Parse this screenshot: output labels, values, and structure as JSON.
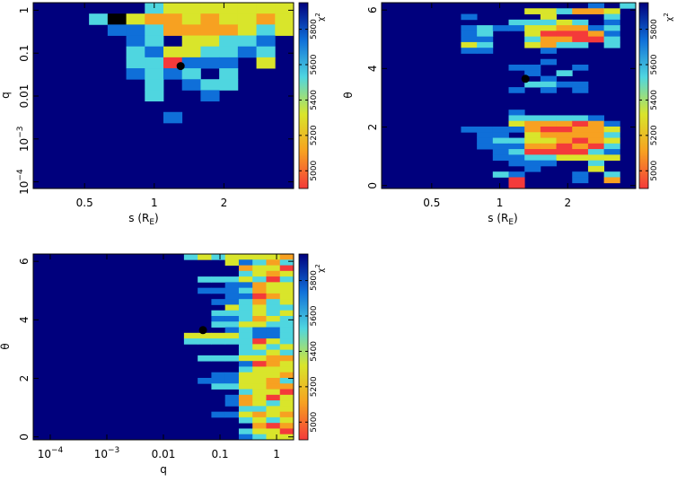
{
  "chart_data": [
    {
      "type": "heatmap",
      "title": "",
      "xlabel_main": "s (R",
      "xlabel_sub": "E",
      "xlabel_close": ")",
      "ylabel": "q",
      "x_scale": "log",
      "y_scale": "log",
      "xlim": [
        0.3,
        4.0
      ],
      "ylim": [
        7e-05,
        1.5
      ],
      "x_ticks": [
        {
          "value": 0.5,
          "label": "0.5"
        },
        {
          "value": 1,
          "label": "1"
        },
        {
          "value": 2,
          "label": "2"
        }
      ],
      "y_ticks": [
        {
          "value": 1,
          "label": "1"
        },
        {
          "value": 0.1,
          "label": "0.1"
        },
        {
          "value": 0.01,
          "label": "0.01"
        },
        {
          "value": 0.001,
          "label": "10",
          "sup": "−3"
        },
        {
          "value": 0.0001,
          "label": "10",
          "sup": "−4"
        }
      ],
      "marker": {
        "x": 1.3,
        "y": 0.05
      },
      "grid_origin": [
        0.3,
        1.5
      ],
      "grid_step": [
        1.14,
        0.72
      ],
      "grid": [
        "00000023333333",
        "00026344343343",
        "00001124444323",
        "00000120332210",
        "00000213322120",
        "00000225111030",
        "00000121202000",
        "00000020122000",
        "00000020010000",
        "00000000000000",
        "00000001000000",
        "00000000000000",
        "00000000000000",
        "00000000000000",
        "00000000000000",
        "00000000000000",
        "00000000000000"
      ]
    },
    {
      "type": "heatmap",
      "title": "",
      "xlabel_main": "s (R",
      "xlabel_sub": "E",
      "xlabel_close": ")",
      "ylabel": "θ",
      "x_scale": "log",
      "y_scale": "linear",
      "xlim": [
        0.3,
        4.0
      ],
      "ylim": [
        -0.1,
        6.25
      ],
      "x_ticks": [
        {
          "value": 0.5,
          "label": "0.5"
        },
        {
          "value": 1,
          "label": "1"
        },
        {
          "value": 2,
          "label": "2"
        }
      ],
      "y_ticks": [
        {
          "value": 0,
          "label": "0"
        },
        {
          "value": 2,
          "label": "2"
        },
        {
          "value": 4,
          "label": "4"
        },
        {
          "value": 6,
          "label": "6"
        }
      ],
      "marker": {
        "x": 1.3,
        "y": 3.65
      },
      "grid_origin": [
        0.3,
        6.25
      ],
      "grid_step": [
        1.1,
        0.19
      ],
      "grid": [
        "0000000000000102",
        "0000000003324430",
        "0000010000300020",
        "0000000022232010",
        "0000012113344120",
        "0000012003555410",
        "0000011002445520",
        "0000032003422020",
        "0000011000100000",
        "0000000000000000",
        "0000000000100000",
        "0000000011001000",
        "0000000001020000",
        "0000000000100000",
        "0000000002211000",
        "0000000010101000",
        "0000000000000000",
        "0000000000000000",
        "0000000000000000",
        "0000000010000000",
        "0000000022222100",
        "0000000034445410",
        "0000011114554430",
        "0000001103444420",
        "0000001223345430",
        "0000001114454520",
        "0000000125555210",
        "0000000112233330",
        "0000000011100200",
        "0000000001000300",
        "0000000210001020",
        "0000000050001040",
        "0000000050000000"
      ]
    },
    {
      "type": "heatmap",
      "title": "",
      "xlabel_main": "q",
      "ylabel": "θ",
      "x_scale": "log",
      "y_scale": "linear",
      "xlim": [
        5e-05,
        2.0
      ],
      "ylim": [
        -0.1,
        6.25
      ],
      "x_ticks": [
        {
          "value": 0.0001,
          "label": "10",
          "sup": "−4"
        },
        {
          "value": 0.001,
          "label": "10",
          "sup": "−3"
        },
        {
          "value": 0.01,
          "label": "0.01"
        },
        {
          "value": 0.1,
          "label": "0.1"
        },
        {
          "value": 1,
          "label": "1"
        }
      ],
      "y_ticks": [
        {
          "value": 0,
          "label": "0"
        },
        {
          "value": 2,
          "label": "2"
        },
        {
          "value": 4,
          "label": "4"
        },
        {
          "value": 6,
          "label": "6"
        }
      ],
      "marker": {
        "x": 0.05,
        "y": 3.65
      },
      "grid_origin": [
        5e-05,
        6.25
      ],
      "grid_step": [
        1.9,
        0.19
      ],
      "grid": [
        "0000000000023233334",
        "0000000000000031242",
        "0000000000000004335",
        "0000000000000002343",
        "0000000000002223252",
        "0000000000000011433",
        "0000000000001112433",
        "0000000000000011543",
        "0000000000000112423",
        "0000000000000032322",
        "0000000000000222323",
        "0000000000000112432",
        "0000000000000223322",
        "0000000000000012112",
        "0000000000033332112",
        "0000000000022222532",
        "0000000000000002323",
        "0000000000000002232",
        "0000000000002223344",
        "0000000000000001543",
        "0000000000000002333",
        "0000000000000113334",
        "0000000000001113342",
        "0000000000000223344",
        "0000000000000002335",
        "0000000000000014353",
        "0000000000000014323",
        "0000000000000002233",
        "0000000000000113434",
        "0000000000000002323",
        "0000000000000000454",
        "0000000000000002335",
        "0000000000000001233"
      ]
    }
  ],
  "colorbar": {
    "label": "χ",
    "label_sup": "2",
    "ticks": [
      "5000",
      "5200",
      "5400",
      "5600",
      "5800"
    ],
    "colors": [
      "#00007d",
      "#0f6fd9",
      "#4fd6e0",
      "#d9e52b",
      "#f7a121",
      "#f43a3a"
    ]
  }
}
